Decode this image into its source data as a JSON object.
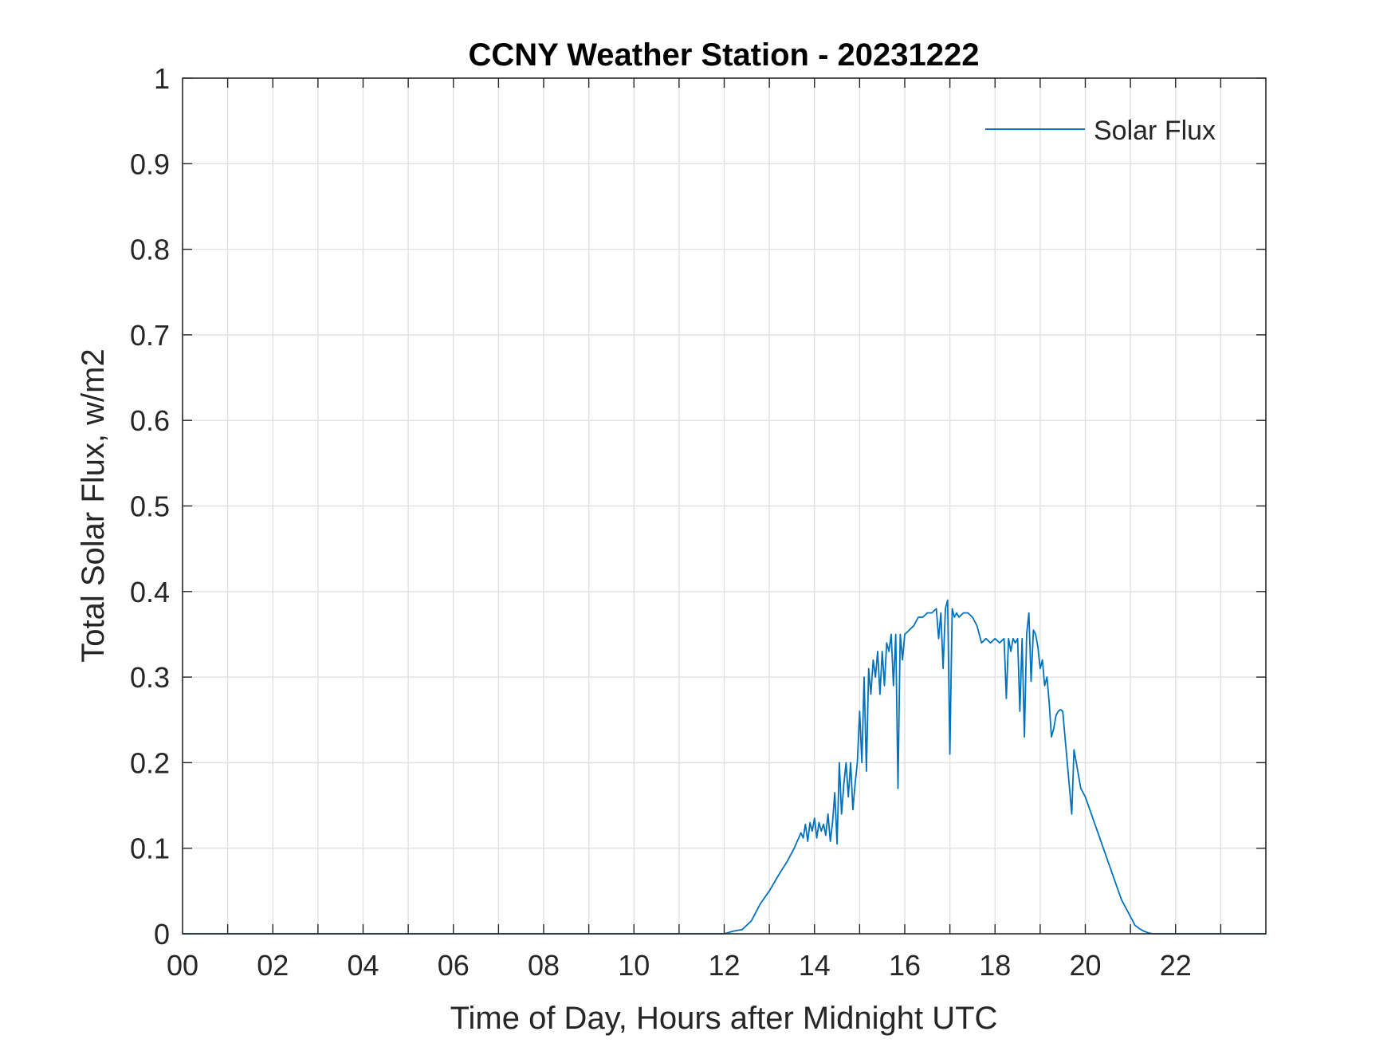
{
  "chart_data": {
    "type": "line",
    "title": "CCNY Weather Station - 20231222",
    "xlabel": "Time of Day, Hours after Midnight UTC",
    "ylabel": "Total Solar Flux, w/m2",
    "xlim": [
      0,
      24
    ],
    "ylim": [
      0,
      1
    ],
    "xticks": [
      0,
      2,
      4,
      6,
      8,
      10,
      12,
      14,
      16,
      18,
      20,
      22
    ],
    "xtick_labels": [
      "00",
      "02",
      "04",
      "06",
      "08",
      "10",
      "12",
      "14",
      "16",
      "18",
      "20",
      "22"
    ],
    "yticks": [
      0,
      0.1,
      0.2,
      0.3,
      0.4,
      0.5,
      0.6,
      0.7,
      0.8,
      0.9,
      1
    ],
    "ytick_labels": [
      "0",
      "0.1",
      "0.2",
      "0.3",
      "0.4",
      "0.5",
      "0.6",
      "0.7",
      "0.8",
      "0.9",
      "1"
    ],
    "grid": true,
    "legend_position": "top-right",
    "series": [
      {
        "name": "Solar Flux",
        "color": "#0072BD",
        "x": [
          0,
          12.0,
          12.2,
          12.4,
          12.6,
          12.8,
          13.0,
          13.2,
          13.4,
          13.55,
          13.7,
          13.75,
          13.8,
          13.85,
          13.9,
          13.95,
          14.0,
          14.05,
          14.1,
          14.15,
          14.2,
          14.25,
          14.3,
          14.35,
          14.4,
          14.45,
          14.5,
          14.55,
          14.6,
          14.65,
          14.7,
          14.75,
          14.8,
          14.85,
          14.9,
          14.95,
          15.0,
          15.05,
          15.1,
          15.15,
          15.2,
          15.25,
          15.3,
          15.35,
          15.4,
          15.45,
          15.5,
          15.55,
          15.6,
          15.65,
          15.7,
          15.75,
          15.8,
          15.85,
          15.9,
          15.95,
          16.0,
          16.1,
          16.2,
          16.3,
          16.4,
          16.5,
          16.6,
          16.7,
          16.75,
          16.8,
          16.85,
          16.9,
          16.95,
          17.0,
          17.05,
          17.1,
          17.15,
          17.2,
          17.3,
          17.4,
          17.5,
          17.6,
          17.7,
          17.8,
          17.9,
          18.0,
          18.1,
          18.2,
          18.25,
          18.3,
          18.35,
          18.4,
          18.45,
          18.5,
          18.55,
          18.6,
          18.65,
          18.7,
          18.75,
          18.8,
          18.85,
          18.9,
          18.95,
          19.0,
          19.05,
          19.1,
          19.15,
          19.2,
          19.25,
          19.3,
          19.35,
          19.4,
          19.45,
          19.5,
          19.55,
          19.6,
          19.65,
          19.7,
          19.75,
          19.8,
          19.85,
          19.9,
          20.0,
          20.1,
          20.2,
          20.3,
          20.4,
          20.5,
          20.6,
          20.7,
          20.8,
          20.9,
          21.0,
          21.1,
          21.2,
          21.3,
          21.4,
          21.5,
          21.6,
          21.7,
          21.8,
          21.9,
          22.0,
          24.0
        ],
        "y": [
          0,
          0,
          0.003,
          0.005,
          0.015,
          0.035,
          0.05,
          0.068,
          0.085,
          0.1,
          0.118,
          0.112,
          0.128,
          0.108,
          0.13,
          0.12,
          0.135,
          0.112,
          0.13,
          0.12,
          0.128,
          0.115,
          0.14,
          0.108,
          0.13,
          0.165,
          0.105,
          0.2,
          0.14,
          0.175,
          0.2,
          0.16,
          0.2,
          0.145,
          0.175,
          0.2,
          0.26,
          0.2,
          0.3,
          0.19,
          0.31,
          0.28,
          0.32,
          0.3,
          0.33,
          0.28,
          0.33,
          0.29,
          0.34,
          0.33,
          0.35,
          0.29,
          0.35,
          0.17,
          0.35,
          0.32,
          0.35,
          0.355,
          0.36,
          0.37,
          0.37,
          0.375,
          0.375,
          0.38,
          0.345,
          0.375,
          0.31,
          0.38,
          0.39,
          0.21,
          0.38,
          0.37,
          0.375,
          0.37,
          0.375,
          0.375,
          0.37,
          0.36,
          0.34,
          0.345,
          0.34,
          0.345,
          0.34,
          0.345,
          0.275,
          0.345,
          0.33,
          0.345,
          0.34,
          0.345,
          0.26,
          0.345,
          0.23,
          0.35,
          0.375,
          0.295,
          0.355,
          0.35,
          0.335,
          0.31,
          0.32,
          0.29,
          0.3,
          0.27,
          0.23,
          0.24,
          0.255,
          0.26,
          0.262,
          0.26,
          0.23,
          0.2,
          0.17,
          0.14,
          0.215,
          0.2,
          0.185,
          0.17,
          0.16,
          0.145,
          0.13,
          0.115,
          0.1,
          0.085,
          0.07,
          0.055,
          0.04,
          0.03,
          0.02,
          0.01,
          0.006,
          0.003,
          0.001,
          0,
          0,
          0,
          0,
          0,
          0,
          0
        ]
      }
    ]
  }
}
